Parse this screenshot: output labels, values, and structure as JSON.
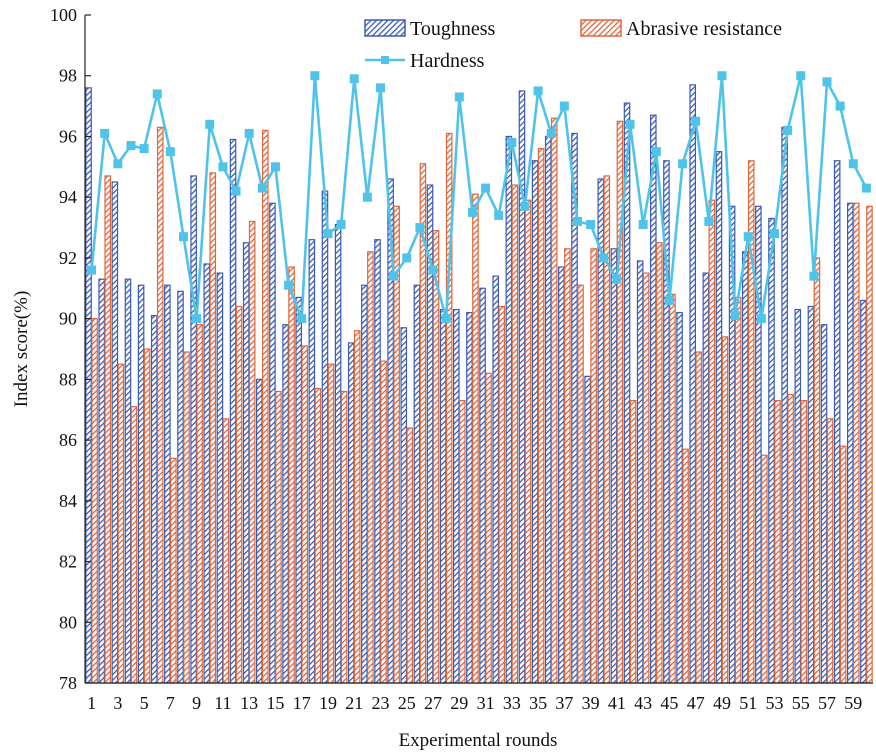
{
  "chart_data": {
    "type": "bar",
    "title": "",
    "xlabel": "Experimental rounds",
    "ylabel": "Index score(%)",
    "ylim": [
      78,
      100
    ],
    "yticks": [
      78,
      80,
      82,
      84,
      86,
      88,
      90,
      92,
      94,
      96,
      98,
      100
    ],
    "categories": [
      1,
      2,
      3,
      4,
      5,
      6,
      7,
      8,
      9,
      10,
      11,
      12,
      13,
      14,
      15,
      16,
      17,
      18,
      19,
      20,
      21,
      22,
      23,
      24,
      25,
      26,
      27,
      28,
      29,
      30,
      31,
      32,
      33,
      34,
      35,
      36,
      37,
      38,
      39,
      40,
      41,
      42,
      43,
      44,
      45,
      46,
      47,
      48,
      49,
      50,
      51,
      52,
      53,
      54,
      55,
      56,
      57,
      58,
      59,
      60
    ],
    "xtick_labels": [
      "1",
      "3",
      "5",
      "7",
      "9",
      "11",
      "13",
      "15",
      "17",
      "19",
      "21",
      "23",
      "25",
      "27",
      "29",
      "31",
      "33",
      "35",
      "37",
      "39",
      "41",
      "43",
      "45",
      "47",
      "49",
      "51",
      "53",
      "55",
      "57",
      "59"
    ],
    "grid": false,
    "legend_position": "top",
    "series": [
      {
        "name": "Toughness",
        "kind": "bar",
        "color": "#3b5bb5",
        "values": [
          97.6,
          91.3,
          94.5,
          91.3,
          91.1,
          90.1,
          91.1,
          90.9,
          94.7,
          91.8,
          91.5,
          95.9,
          92.5,
          88.0,
          93.8,
          89.8,
          90.7,
          92.6,
          94.2,
          93.1,
          89.2,
          91.1,
          92.6,
          94.6,
          89.7,
          91.1,
          94.4,
          90.3,
          90.3,
          90.2,
          91.0,
          91.4,
          96.0,
          97.5,
          95.2,
          96.0,
          91.7,
          96.1,
          88.1,
          94.6,
          92.3,
          97.1,
          91.9,
          96.7,
          95.2,
          90.2,
          97.7,
          91.5,
          95.5,
          93.7,
          92.2,
          93.7,
          93.3,
          96.3,
          90.3,
          90.4,
          89.8,
          95.2,
          93.8,
          90.6
        ]
      },
      {
        "name": "Abrasive resistance",
        "kind": "bar",
        "color": "#e0663d",
        "values": [
          90.0,
          94.7,
          88.5,
          87.1,
          89.0,
          96.3,
          85.4,
          88.9,
          89.8,
          94.8,
          86.7,
          90.4,
          93.2,
          96.2,
          87.6,
          91.7,
          89.1,
          87.7,
          88.5,
          87.6,
          89.6,
          92.2,
          88.6,
          93.7,
          86.4,
          95.1,
          92.9,
          96.1,
          87.3,
          94.1,
          88.2,
          90.4,
          94.4,
          93.9,
          95.6,
          96.6,
          92.3,
          91.1,
          92.3,
          94.7,
          96.5,
          87.3,
          91.5,
          92.5,
          90.8,
          85.7,
          88.9,
          93.9,
          89.4,
          90.7,
          95.2,
          85.5,
          87.3,
          87.5,
          87.3,
          92.0,
          86.7,
          85.8,
          93.8,
          93.7
        ]
      },
      {
        "name": "Hardness",
        "kind": "line",
        "color": "#4fc3e8",
        "values": [
          91.6,
          96.1,
          95.1,
          95.7,
          95.6,
          97.4,
          95.5,
          92.7,
          90.0,
          96.4,
          95.0,
          94.2,
          96.1,
          94.3,
          95.0,
          91.1,
          90.0,
          98.0,
          92.8,
          93.1,
          97.9,
          94.0,
          97.6,
          91.4,
          92.0,
          93.0,
          91.6,
          90.0,
          97.3,
          93.5,
          94.3,
          93.4,
          95.8,
          93.7,
          97.5,
          96.1,
          97.0,
          93.2,
          93.1,
          92.0,
          91.3,
          96.4,
          93.1,
          95.5,
          90.6,
          95.1,
          96.5,
          93.2,
          98.0,
          90.1,
          92.7,
          90.0,
          92.8,
          96.2,
          98.0,
          91.4,
          97.8,
          97.0,
          95.1,
          94.3
        ]
      }
    ]
  }
}
